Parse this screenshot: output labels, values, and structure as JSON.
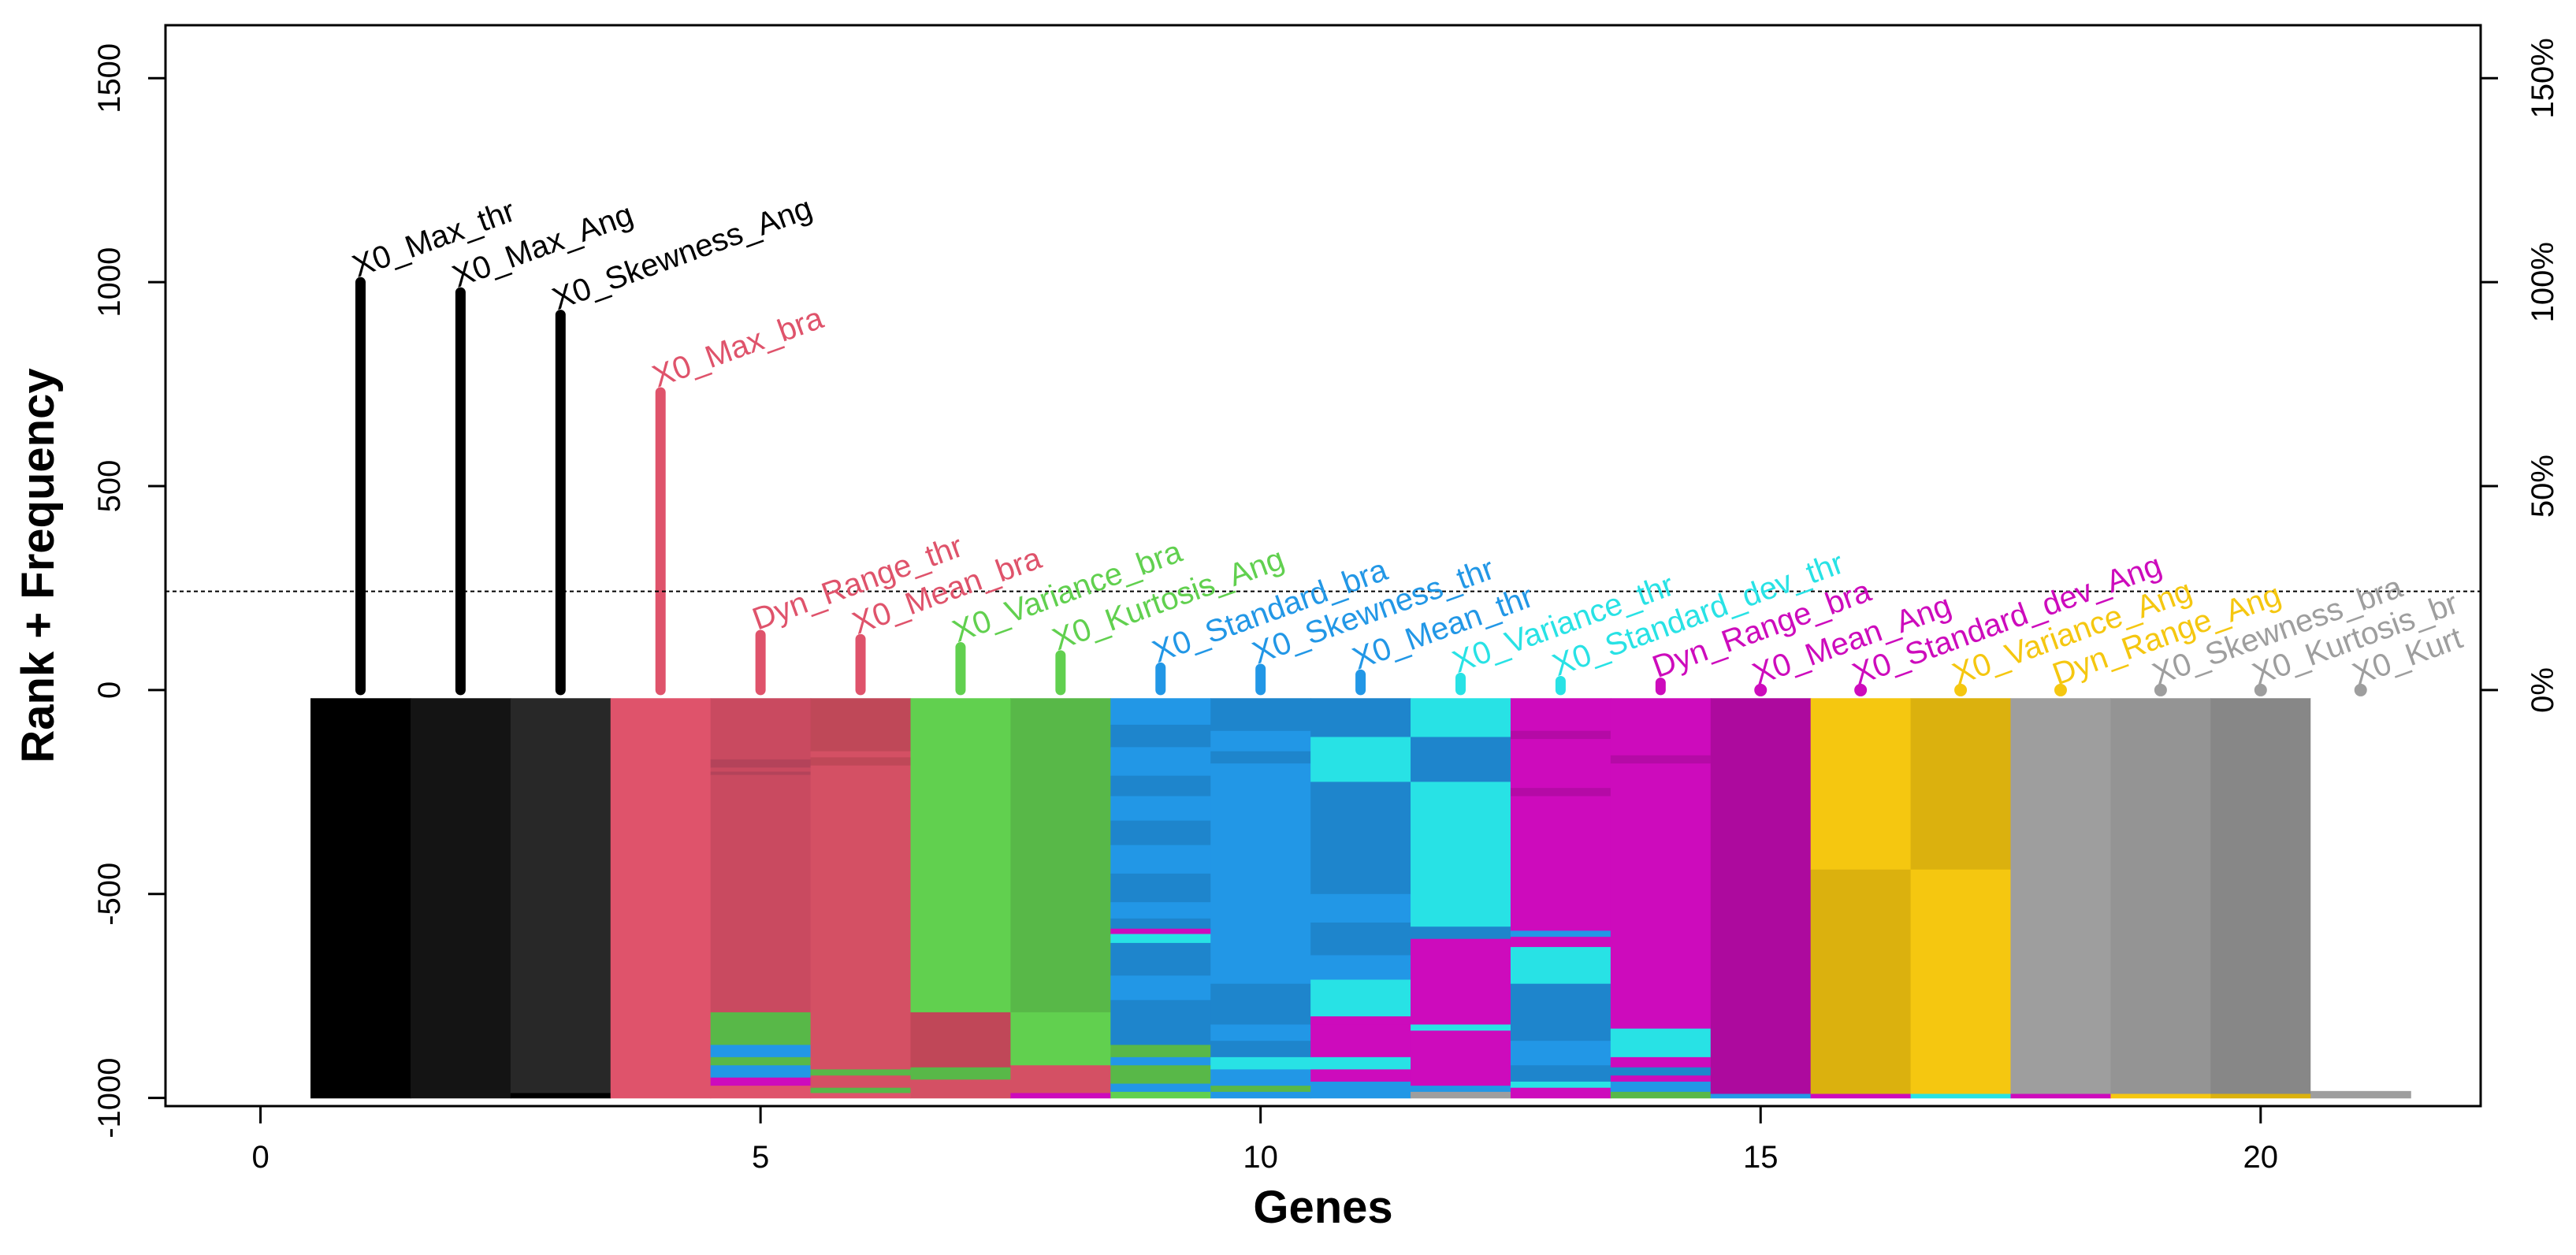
{
  "chart_data": {
    "type": "bar",
    "title": "",
    "xlabel": "Genes",
    "ylabel": "Rank + Frequency",
    "xlim": [
      -0.95,
      22.2
    ],
    "ylim": [
      -1020,
      1630
    ],
    "x_ticks": [
      0,
      5,
      10,
      15,
      20
    ],
    "x_tick_labels": [
      "0",
      "5",
      "10",
      "15",
      "20"
    ],
    "y_ticks": [
      -1000,
      -500,
      0,
      500,
      1000,
      1500
    ],
    "y_tick_labels": [
      "-1000",
      "-500",
      "0",
      "500",
      "1000",
      "1500"
    ],
    "y2_ticks": [
      0,
      500,
      1000,
      1500
    ],
    "y2_tick_labels": [
      "0%",
      "50%",
      "100%",
      "150%"
    ],
    "threshold": 242,
    "grid": false,
    "legend": "none",
    "genes": [
      {
        "x": 1,
        "label": "X0_Max_thr",
        "value": 1000,
        "color": "#000000"
      },
      {
        "x": 2,
        "label": "X0_Max_Ang",
        "value": 975,
        "color": "#000000"
      },
      {
        "x": 3,
        "label": "X0_Skewness_Ang",
        "value": 920,
        "color": "#000000"
      },
      {
        "x": 4,
        "label": "X0_Max_bra",
        "value": 730,
        "color": "#DF536B"
      },
      {
        "x": 5,
        "label": "Dyn_Range_thr",
        "value": 135,
        "color": "#DF536B"
      },
      {
        "x": 6,
        "label": "X0_Mean_bra",
        "value": 125,
        "color": "#DF536B"
      },
      {
        "x": 7,
        "label": "X0_Variance_bra",
        "value": 105,
        "color": "#61D04F"
      },
      {
        "x": 8,
        "label": "X0_Kurtosis_Ang",
        "value": 85,
        "color": "#61D04F"
      },
      {
        "x": 9,
        "label": "X0_Standard_bra",
        "value": 55,
        "color": "#2297E6"
      },
      {
        "x": 10,
        "label": "X0_Skewness_thr",
        "value": 52,
        "color": "#2297E6"
      },
      {
        "x": 11,
        "label": "X0_Mean_thr",
        "value": 38,
        "color": "#2297E6"
      },
      {
        "x": 12,
        "label": "X0_Variance_thr",
        "value": 30,
        "color": "#28E2E5"
      },
      {
        "x": 13,
        "label": "X0_Standard_dev_thr",
        "value": 22,
        "color": "#28E2E5"
      },
      {
        "x": 14,
        "label": "Dyn_Range_bra",
        "value": 18,
        "color": "#CD0BBC"
      },
      {
        "x": 15,
        "label": "X0_Mean_Ang",
        "value": 0,
        "color": "#CD0BBC"
      },
      {
        "x": 16,
        "label": "X0_Standard_dev_Ang",
        "value": 0,
        "color": "#CD0BBC"
      },
      {
        "x": 17,
        "label": "X0_Variance_Ang",
        "value": 0,
        "color": "#F5C710"
      },
      {
        "x": 18,
        "label": "Dyn_Range_Ang",
        "value": 0,
        "color": "#F5C710"
      },
      {
        "x": 19,
        "label": "X0_Skewness_bra",
        "value": 0,
        "color": "#9E9E9E"
      },
      {
        "x": 20,
        "label": "X0_Kurtosis_br",
        "value": 0,
        "color": "#9E9E9E"
      },
      {
        "x": 21,
        "label": "X0_Kurt",
        "value": 0,
        "color": "#9E9E9E"
      }
    ],
    "heatmap": {
      "top": -20,
      "bottom": -1000,
      "columns": [
        {
          "x": 1,
          "segments": [
            {
              "to": -1000,
              "color": "#000000"
            }
          ]
        },
        {
          "x": 2,
          "segments": [
            {
              "to": -1000,
              "color": "#141414"
            }
          ]
        },
        {
          "x": 3,
          "segments": [
            {
              "to": -988,
              "color": "#282828"
            },
            {
              "to": -1000,
              "color": "#000000"
            }
          ]
        },
        {
          "x": 4,
          "segments": [
            {
              "to": -1000,
              "color": "#DF536B"
            }
          ]
        },
        {
          "x": 5,
          "segments": [
            {
              "to": -170,
              "color": "#C94A60"
            },
            {
              "to": -190,
              "color": "#B4435A"
            },
            {
              "to": -200,
              "color": "#C94A60"
            },
            {
              "to": -208,
              "color": "#B4435A"
            },
            {
              "to": -790,
              "color": "#C94A60"
            },
            {
              "to": -870,
              "color": "#58B848"
            },
            {
              "to": -900,
              "color": "#2297E6"
            },
            {
              "to": -920,
              "color": "#58B848"
            },
            {
              "to": -950,
              "color": "#2297E6"
            },
            {
              "to": -970,
              "color": "#CD0BBC"
            },
            {
              "to": -1000,
              "color": "#DF536B"
            }
          ]
        },
        {
          "x": 6,
          "segments": [
            {
              "to": -150,
              "color": "#BF4858"
            },
            {
              "to": -165,
              "color": "#D45064"
            },
            {
              "to": -185,
              "color": "#BF4858"
            },
            {
              "to": -930,
              "color": "#D45064"
            },
            {
              "to": -945,
              "color": "#58B848"
            },
            {
              "to": -975,
              "color": "#D45064"
            },
            {
              "to": -988,
              "color": "#58B848"
            },
            {
              "to": -1000,
              "color": "#DF536B"
            }
          ]
        },
        {
          "x": 7,
          "segments": [
            {
              "to": -790,
              "color": "#61D04F"
            },
            {
              "to": -925,
              "color": "#C04758"
            },
            {
              "to": -955,
              "color": "#58B848"
            },
            {
              "to": -1000,
              "color": "#D45064"
            }
          ]
        },
        {
          "x": 8,
          "segments": [
            {
              "to": -790,
              "color": "#58B848"
            },
            {
              "to": -920,
              "color": "#61D04F"
            },
            {
              "to": -988,
              "color": "#D45064"
            },
            {
              "to": -1000,
              "color": "#CD0BBC"
            }
          ]
        },
        {
          "x": 9,
          "segments": [
            {
              "to": -85,
              "color": "#2297E6"
            },
            {
              "to": -140,
              "color": "#1E85CC"
            },
            {
              "to": -210,
              "color": "#2297E6"
            },
            {
              "to": -260,
              "color": "#1E85CC"
            },
            {
              "to": -320,
              "color": "#2297E6"
            },
            {
              "to": -380,
              "color": "#1E85CC"
            },
            {
              "to": -450,
              "color": "#2297E6"
            },
            {
              "to": -520,
              "color": "#1E85CC"
            },
            {
              "to": -560,
              "color": "#2297E6"
            },
            {
              "to": -585,
              "color": "#1E85CC"
            },
            {
              "to": -598,
              "color": "#CD0BBC"
            },
            {
              "to": -620,
              "color": "#28E2E5"
            },
            {
              "to": -700,
              "color": "#1E85CC"
            },
            {
              "to": -760,
              "color": "#2297E6"
            },
            {
              "to": -870,
              "color": "#1E85CC"
            },
            {
              "to": -900,
              "color": "#58B848"
            },
            {
              "to": -920,
              "color": "#2297E6"
            },
            {
              "to": -965,
              "color": "#58B848"
            },
            {
              "to": -985,
              "color": "#2297E6"
            },
            {
              "to": -1000,
              "color": "#61D04F"
            }
          ]
        },
        {
          "x": 10,
          "segments": [
            {
              "to": -100,
              "color": "#1E85CC"
            },
            {
              "to": -150,
              "color": "#2297E6"
            },
            {
              "to": -180,
              "color": "#1E85CC"
            },
            {
              "to": -720,
              "color": "#2297E6"
            },
            {
              "to": -820,
              "color": "#1E85CC"
            },
            {
              "to": -860,
              "color": "#2297E6"
            },
            {
              "to": -900,
              "color": "#1E85CC"
            },
            {
              "to": -930,
              "color": "#28E2E5"
            },
            {
              "to": -970,
              "color": "#2297E6"
            },
            {
              "to": -985,
              "color": "#58B848"
            },
            {
              "to": -1000,
              "color": "#2297E6"
            }
          ]
        },
        {
          "x": 11,
          "segments": [
            {
              "to": -115,
              "color": "#1E85CC"
            },
            {
              "to": -225,
              "color": "#28E2E5"
            },
            {
              "to": -500,
              "color": "#1E85CC"
            },
            {
              "to": -570,
              "color": "#2297E6"
            },
            {
              "to": -650,
              "color": "#1E85CC"
            },
            {
              "to": -710,
              "color": "#2297E6"
            },
            {
              "to": -800,
              "color": "#28E2E5"
            },
            {
              "to": -820,
              "color": "#CD0BBC"
            },
            {
              "to": -900,
              "color": "#CD0BBC"
            },
            {
              "to": -930,
              "color": "#28E2E5"
            },
            {
              "to": -960,
              "color": "#CD0BBC"
            },
            {
              "to": -1000,
              "color": "#2297E6"
            }
          ]
        },
        {
          "x": 12,
          "segments": [
            {
              "to": -115,
              "color": "#28E2E5"
            },
            {
              "to": -225,
              "color": "#1E85CC"
            },
            {
              "to": -580,
              "color": "#28E2E5"
            },
            {
              "to": -610,
              "color": "#1E85CC"
            },
            {
              "to": -820,
              "color": "#CD0BBC"
            },
            {
              "to": -835,
              "color": "#28E2E5"
            },
            {
              "to": -970,
              "color": "#CD0BBC"
            },
            {
              "to": -985,
              "color": "#2297E6"
            },
            {
              "to": -1000,
              "color": "#9E9E9E"
            }
          ]
        },
        {
          "x": 13,
          "segments": [
            {
              "to": -100,
              "color": "#CD0BBC"
            },
            {
              "to": -120,
              "color": "#B50AA6"
            },
            {
              "to": -240,
              "color": "#CD0BBC"
            },
            {
              "to": -260,
              "color": "#B50AA6"
            },
            {
              "to": -590,
              "color": "#CD0BBC"
            },
            {
              "to": -605,
              "color": "#2297E6"
            },
            {
              "to": -630,
              "color": "#CD0BBC"
            },
            {
              "to": -720,
              "color": "#28E2E5"
            },
            {
              "to": -860,
              "color": "#1E85CC"
            },
            {
              "to": -920,
              "color": "#2297E6"
            },
            {
              "to": -960,
              "color": "#1E85CC"
            },
            {
              "to": -975,
              "color": "#28E2E5"
            },
            {
              "to": -1000,
              "color": "#CD0BBC"
            }
          ]
        },
        {
          "x": 14,
          "segments": [
            {
              "to": -160,
              "color": "#CD0BBC"
            },
            {
              "to": -180,
              "color": "#B50AA6"
            },
            {
              "to": -830,
              "color": "#CD0BBC"
            },
            {
              "to": -900,
              "color": "#28E2E5"
            },
            {
              "to": -925,
              "color": "#CD0BBC"
            },
            {
              "to": -945,
              "color": "#1E85CC"
            },
            {
              "to": -960,
              "color": "#CD0BBC"
            },
            {
              "to": -985,
              "color": "#2297E6"
            },
            {
              "to": -1000,
              "color": "#58B848"
            }
          ]
        },
        {
          "x": 15,
          "segments": [
            {
              "to": -990,
              "color": "#AD0A9E"
            },
            {
              "to": -1000,
              "color": "#2297E6"
            }
          ]
        },
        {
          "x": 16,
          "segments": [
            {
              "to": -440,
              "color": "#F5C710"
            },
            {
              "to": -990,
              "color": "#DBB10E"
            },
            {
              "to": -1000,
              "color": "#CD0BBC"
            }
          ]
        },
        {
          "x": 17,
          "segments": [
            {
              "to": -440,
              "color": "#DBB10E"
            },
            {
              "to": -990,
              "color": "#F5C710"
            },
            {
              "to": -1000,
              "color": "#28E2E5"
            }
          ]
        },
        {
          "x": 18,
          "segments": [
            {
              "to": -990,
              "color": "#9E9E9E"
            },
            {
              "to": -1000,
              "color": "#CD0BBC"
            }
          ]
        },
        {
          "x": 19,
          "segments": [
            {
              "to": -990,
              "color": "#949494"
            },
            {
              "to": -1000,
              "color": "#F5C710"
            }
          ]
        },
        {
          "x": 20,
          "segments": [
            {
              "to": -990,
              "color": "#878787"
            },
            {
              "to": -1000,
              "color": "#DBB10E"
            }
          ]
        },
        {
          "x": 21,
          "segments": [
            {
              "to": -983,
              "color": "#FFFFFF"
            },
            {
              "to": -1000,
              "color": "#9E9E9E"
            }
          ]
        }
      ]
    }
  }
}
